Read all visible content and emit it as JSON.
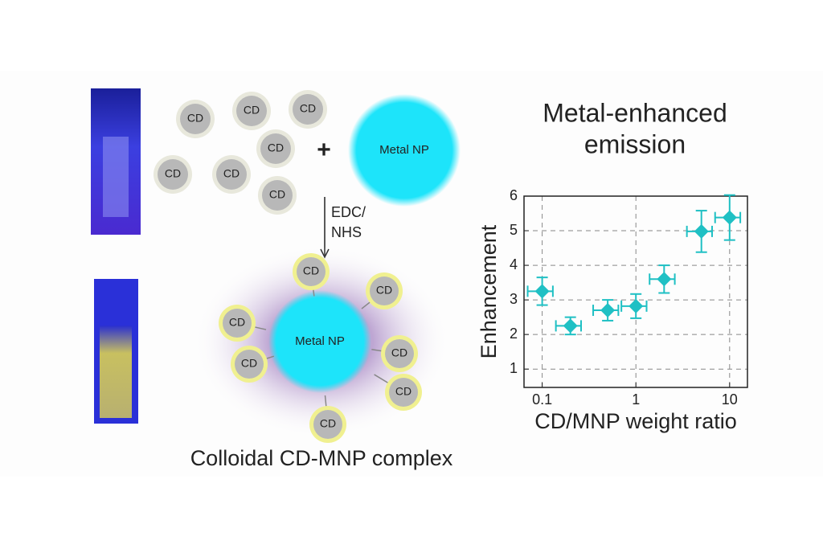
{
  "chart_data": {
    "type": "scatter",
    "xlabel": "CD/MNP weight ratio",
    "ylabel": "Enhancement",
    "x": [
      0.1,
      0.2,
      0.5,
      1,
      2,
      5,
      10
    ],
    "values": [
      3.25,
      2.25,
      2.7,
      2.82,
      3.6,
      4.98,
      5.38
    ],
    "yerr": [
      0.4,
      0.25,
      0.3,
      0.35,
      0.4,
      0.6,
      0.65
    ],
    "xerr": [
      0.03,
      0.06,
      0.15,
      0.3,
      0.6,
      1.5,
      3
    ],
    "color": "#1fc0c4",
    "xscale": "log",
    "grid": true,
    "xlim": [
      0.064,
      15.5
    ],
    "xticks": [
      0.1,
      1,
      10
    ],
    "ylim": [
      0.47,
      6
    ],
    "yticks": [
      1,
      2,
      3,
      4,
      5,
      6
    ]
  },
  "diagram": {
    "title": [
      "Metal-enhanced",
      "emission"
    ],
    "free_cds": [
      "CD",
      "CD",
      "CD",
      "CD",
      "CD",
      "CD",
      "CD"
    ],
    "metal_np": "Metal NP",
    "plus": "+",
    "reagent": [
      "EDC/",
      "NHS"
    ],
    "complex_np": "Metal NP",
    "bound_cds": [
      "CD",
      "CD",
      "CD",
      "CD",
      "CD",
      "CD",
      "CD"
    ],
    "caption": "Colloidal CD-MNP complex"
  }
}
